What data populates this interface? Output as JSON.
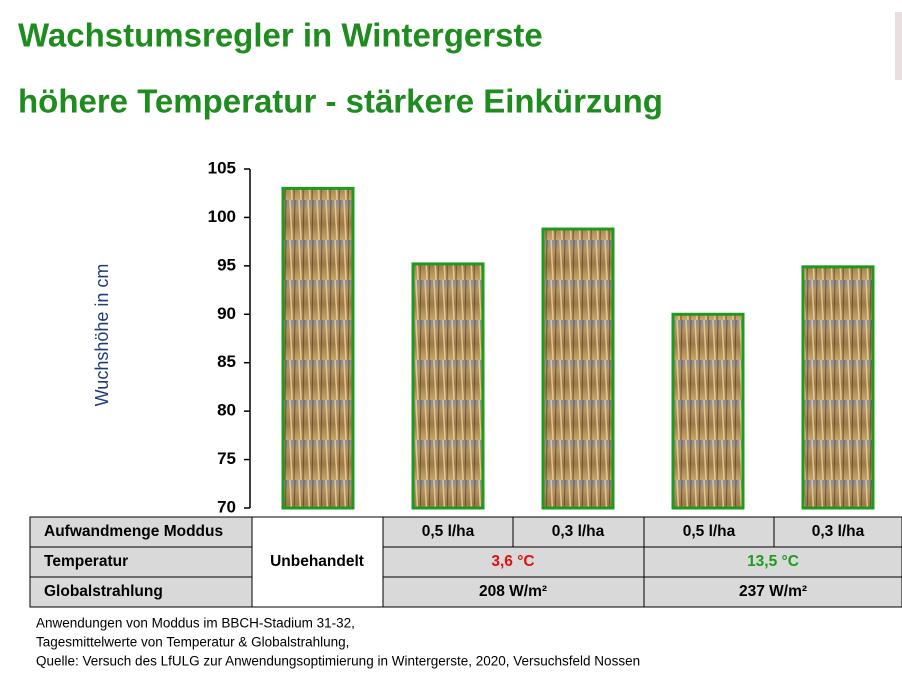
{
  "chart_data": {
    "type": "bar",
    "title": "Wachstumsregler in Wintergerste",
    "subtitle": "höhere Temperatur - stärkere Einkürzung",
    "y_label": "Wuchshöhe in cm",
    "categories": [
      null,
      null,
      null,
      null,
      null
    ],
    "values": [
      103,
      95.2,
      98.8,
      90,
      94.9
    ],
    "color": "#1e9a1e",
    "ylim": [
      70,
      105
    ],
    "yticks": [
      70,
      75,
      80,
      85,
      90,
      95,
      100,
      105
    ],
    "grid": false
  },
  "table": {
    "control": "Unbehandelt",
    "rows": [
      [
        "Aufwandmenge Moddus",
        "0,5 l/ha",
        "0,3 l/ha",
        "0,5 l/ha",
        "0,3 l/ha"
      ],
      [
        "Temperatur",
        "3,6 °C",
        "13,5 °C"
      ],
      [
        "Globalstrahlung",
        "208 W/m²",
        "237 W/m²"
      ]
    ]
  },
  "footnotes": [
    "Anwendungen von Moddus im BBCH-Stadium 31-32,",
    "Tagesmittelwerte von Temperatur & Globalstrahlung,",
    "Quelle: Versuch des LfULG zur Anwendungsoptimierung in Wintergerste, 2020, Versuchsfeld Nossen"
  ]
}
